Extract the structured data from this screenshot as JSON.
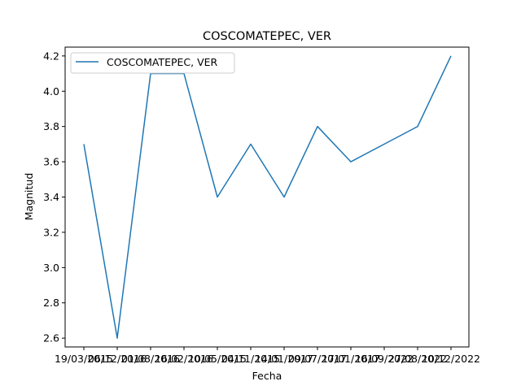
{
  "chart_data": {
    "type": "line",
    "title": "COSCOMATEPEC, VER",
    "xlabel": "Fecha",
    "ylabel": "Magnitud",
    "categories": [
      "19/03/2015",
      "06/12/2016",
      "01/08/2016",
      "16/02/2016",
      "10/05/2015",
      "04/11/2015",
      "14/01/2017",
      "09/07/2017",
      "17/01/2017",
      "16/09/2022",
      "27/08/2022",
      "10/12/2022"
    ],
    "series": [
      {
        "name": "COSCOMATEPEC, VER",
        "color": "#1f77b4",
        "values": [
          3.7,
          2.6,
          4.1,
          4.1,
          3.4,
          3.7,
          3.4,
          3.8,
          3.6,
          3.7,
          3.8,
          4.2
        ]
      }
    ],
    "ylim": [
      2.55,
      4.25
    ],
    "yticks": [
      2.6,
      2.8,
      3.0,
      3.2,
      3.4,
      3.6,
      3.8,
      4.0,
      4.2
    ],
    "ytick_labels": [
      "2.6",
      "2.8",
      "3.0",
      "3.2",
      "3.4",
      "3.6",
      "3.8",
      "4.0",
      "4.2"
    ],
    "grid": false,
    "legend_position": "top-left"
  }
}
